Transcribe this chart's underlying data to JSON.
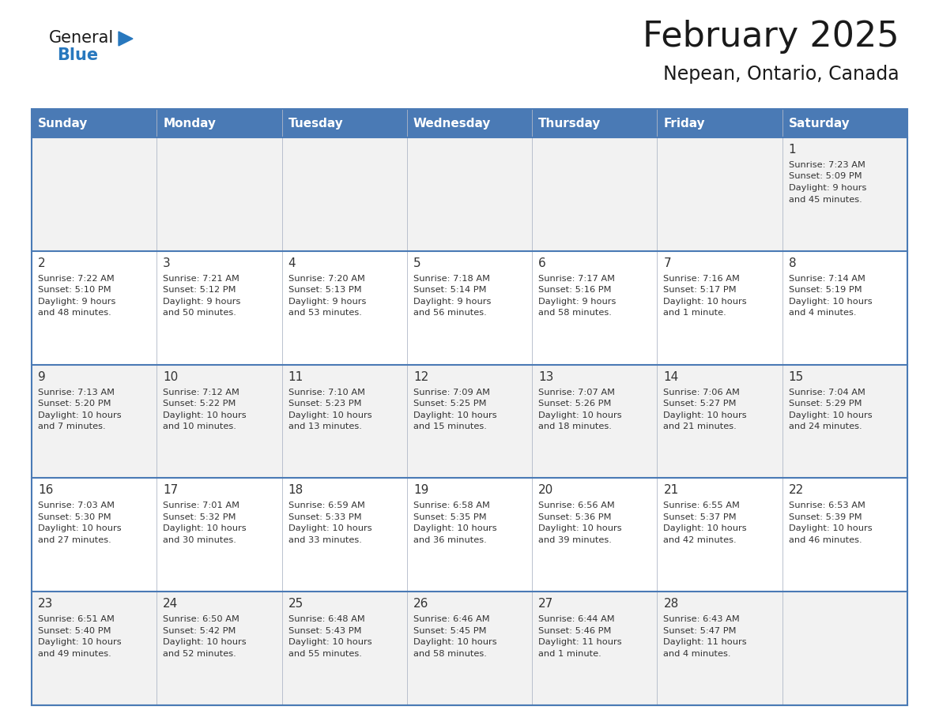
{
  "title": "February 2025",
  "subtitle": "Nepean, Ontario, Canada",
  "header_bg": "#4a7ab5",
  "header_text_color": "#ffffff",
  "row_bg_light": "#f2f2f2",
  "row_bg_white": "#ffffff",
  "border_color": "#4a7ab5",
  "text_color": "#333333",
  "day_headers": [
    "Sunday",
    "Monday",
    "Tuesday",
    "Wednesday",
    "Thursday",
    "Friday",
    "Saturday"
  ],
  "calendar_data": [
    [
      null,
      null,
      null,
      null,
      null,
      null,
      {
        "day": "1",
        "sunrise": "7:23 AM",
        "sunset": "5:09 PM",
        "daylight1": "9 hours",
        "daylight2": "and 45 minutes."
      }
    ],
    [
      {
        "day": "2",
        "sunrise": "7:22 AM",
        "sunset": "5:10 PM",
        "daylight1": "9 hours",
        "daylight2": "and 48 minutes."
      },
      {
        "day": "3",
        "sunrise": "7:21 AM",
        "sunset": "5:12 PM",
        "daylight1": "9 hours",
        "daylight2": "and 50 minutes."
      },
      {
        "day": "4",
        "sunrise": "7:20 AM",
        "sunset": "5:13 PM",
        "daylight1": "9 hours",
        "daylight2": "and 53 minutes."
      },
      {
        "day": "5",
        "sunrise": "7:18 AM",
        "sunset": "5:14 PM",
        "daylight1": "9 hours",
        "daylight2": "and 56 minutes."
      },
      {
        "day": "6",
        "sunrise": "7:17 AM",
        "sunset": "5:16 PM",
        "daylight1": "9 hours",
        "daylight2": "and 58 minutes."
      },
      {
        "day": "7",
        "sunrise": "7:16 AM",
        "sunset": "5:17 PM",
        "daylight1": "10 hours",
        "daylight2": "and 1 minute."
      },
      {
        "day": "8",
        "sunrise": "7:14 AM",
        "sunset": "5:19 PM",
        "daylight1": "10 hours",
        "daylight2": "and 4 minutes."
      }
    ],
    [
      {
        "day": "9",
        "sunrise": "7:13 AM",
        "sunset": "5:20 PM",
        "daylight1": "10 hours",
        "daylight2": "and 7 minutes."
      },
      {
        "day": "10",
        "sunrise": "7:12 AM",
        "sunset": "5:22 PM",
        "daylight1": "10 hours",
        "daylight2": "and 10 minutes."
      },
      {
        "day": "11",
        "sunrise": "7:10 AM",
        "sunset": "5:23 PM",
        "daylight1": "10 hours",
        "daylight2": "and 13 minutes."
      },
      {
        "day": "12",
        "sunrise": "7:09 AM",
        "sunset": "5:25 PM",
        "daylight1": "10 hours",
        "daylight2": "and 15 minutes."
      },
      {
        "day": "13",
        "sunrise": "7:07 AM",
        "sunset": "5:26 PM",
        "daylight1": "10 hours",
        "daylight2": "and 18 minutes."
      },
      {
        "day": "14",
        "sunrise": "7:06 AM",
        "sunset": "5:27 PM",
        "daylight1": "10 hours",
        "daylight2": "and 21 minutes."
      },
      {
        "day": "15",
        "sunrise": "7:04 AM",
        "sunset": "5:29 PM",
        "daylight1": "10 hours",
        "daylight2": "and 24 minutes."
      }
    ],
    [
      {
        "day": "16",
        "sunrise": "7:03 AM",
        "sunset": "5:30 PM",
        "daylight1": "10 hours",
        "daylight2": "and 27 minutes."
      },
      {
        "day": "17",
        "sunrise": "7:01 AM",
        "sunset": "5:32 PM",
        "daylight1": "10 hours",
        "daylight2": "and 30 minutes."
      },
      {
        "day": "18",
        "sunrise": "6:59 AM",
        "sunset": "5:33 PM",
        "daylight1": "10 hours",
        "daylight2": "and 33 minutes."
      },
      {
        "day": "19",
        "sunrise": "6:58 AM",
        "sunset": "5:35 PM",
        "daylight1": "10 hours",
        "daylight2": "and 36 minutes."
      },
      {
        "day": "20",
        "sunrise": "6:56 AM",
        "sunset": "5:36 PM",
        "daylight1": "10 hours",
        "daylight2": "and 39 minutes."
      },
      {
        "day": "21",
        "sunrise": "6:55 AM",
        "sunset": "5:37 PM",
        "daylight1": "10 hours",
        "daylight2": "and 42 minutes."
      },
      {
        "day": "22",
        "sunrise": "6:53 AM",
        "sunset": "5:39 PM",
        "daylight1": "10 hours",
        "daylight2": "and 46 minutes."
      }
    ],
    [
      {
        "day": "23",
        "sunrise": "6:51 AM",
        "sunset": "5:40 PM",
        "daylight1": "10 hours",
        "daylight2": "and 49 minutes."
      },
      {
        "day": "24",
        "sunrise": "6:50 AM",
        "sunset": "5:42 PM",
        "daylight1": "10 hours",
        "daylight2": "and 52 minutes."
      },
      {
        "day": "25",
        "sunrise": "6:48 AM",
        "sunset": "5:43 PM",
        "daylight1": "10 hours",
        "daylight2": "and 55 minutes."
      },
      {
        "day": "26",
        "sunrise": "6:46 AM",
        "sunset": "5:45 PM",
        "daylight1": "10 hours",
        "daylight2": "and 58 minutes."
      },
      {
        "day": "27",
        "sunrise": "6:44 AM",
        "sunset": "5:46 PM",
        "daylight1": "11 hours",
        "daylight2": "and 1 minute."
      },
      {
        "day": "28",
        "sunrise": "6:43 AM",
        "sunset": "5:47 PM",
        "daylight1": "11 hours",
        "daylight2": "and 4 minutes."
      },
      null
    ]
  ],
  "logo_general_color": "#1a1a1a",
  "logo_blue_color": "#2878be",
  "logo_triangle_color": "#2878be",
  "title_fontsize": 32,
  "subtitle_fontsize": 17,
  "header_fontsize": 11,
  "day_num_fontsize": 11,
  "cell_text_fontsize": 8.2
}
